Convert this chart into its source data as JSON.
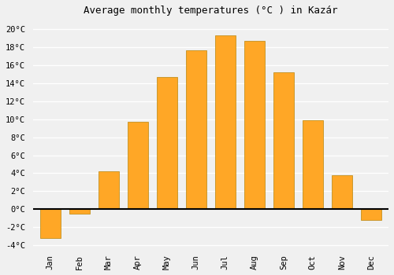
{
  "title": "Average monthly temperatures (°C ) in Kazár",
  "months": [
    "Jan",
    "Feb",
    "Mar",
    "Apr",
    "May",
    "Jun",
    "Jul",
    "Aug",
    "Sep",
    "Oct",
    "Nov",
    "Dec"
  ],
  "values": [
    -3.2,
    -0.5,
    4.2,
    9.7,
    14.7,
    17.6,
    19.3,
    18.7,
    15.2,
    9.9,
    3.8,
    -1.2
  ],
  "bar_color": "#FFA726",
  "bar_edge_color": "#B8860B",
  "ylim": [
    -4.5,
    21
  ],
  "yticks": [
    -4,
    -2,
    0,
    2,
    4,
    6,
    8,
    10,
    12,
    14,
    16,
    18,
    20
  ],
  "background_color": "#f0f0f0",
  "grid_color": "#ffffff",
  "title_fontsize": 9,
  "tick_fontsize": 7.5,
  "bar_width": 0.7
}
